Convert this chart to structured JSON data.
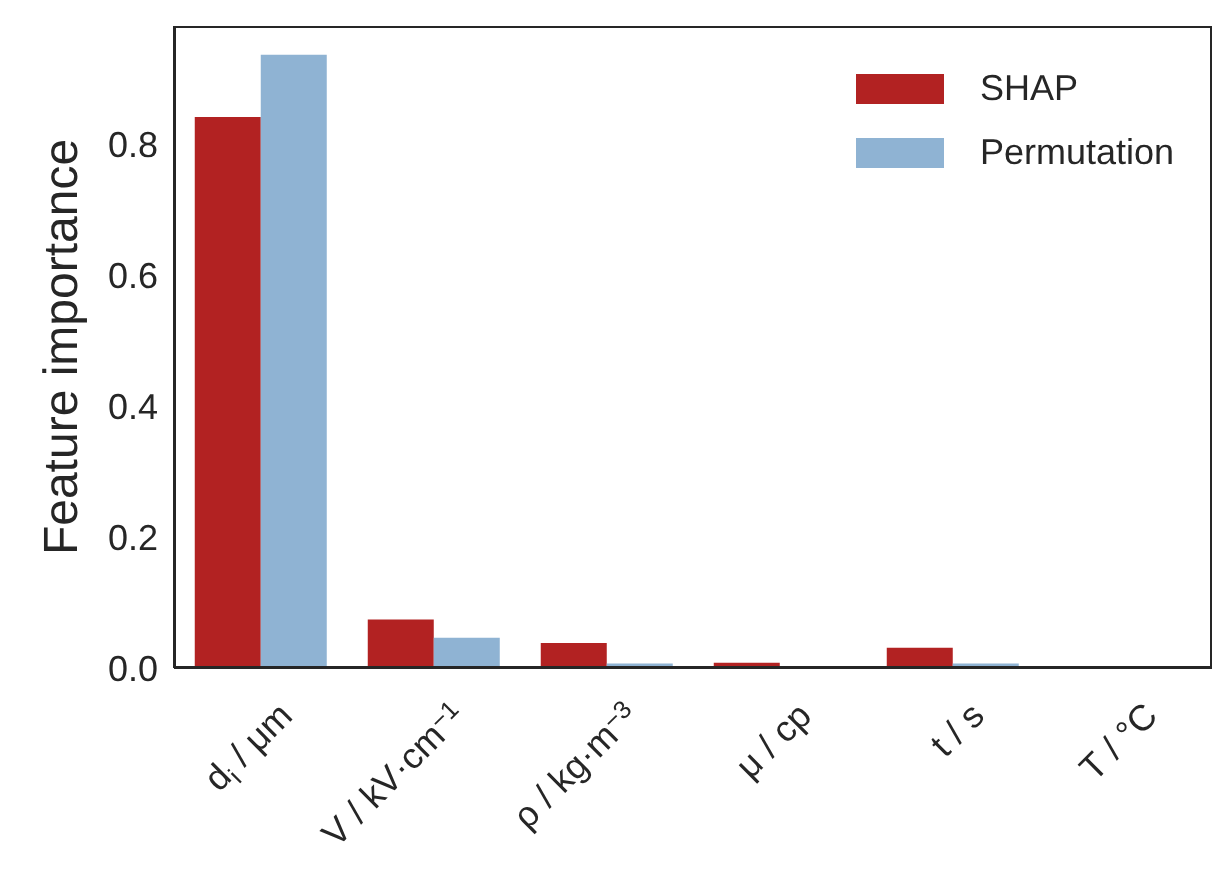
{
  "chart_data": {
    "type": "bar",
    "ylabel": "Feature importance",
    "categories": [
      "d$_{i}$ / μm",
      "V / kV·cm$^{−1}$",
      "ρ / kg·m$^{−3}$",
      "μ / cp",
      "t / s",
      "T / °C"
    ],
    "series": [
      {
        "name": "SHAP",
        "color": "#b22222",
        "values": [
          0.841,
          0.074,
          0.038,
          0.008,
          0.031,
          0
        ]
      },
      {
        "name": "Permutation",
        "color": "#8fb3d3",
        "values": [
          0.936,
          0.046,
          0.007,
          0,
          0.007,
          0
        ]
      }
    ],
    "ylim": [
      0,
      0.98
    ],
    "yticks": [
      {
        "value": 0,
        "label": "0.0"
      },
      0.2,
      0.4,
      0.6,
      0.8
    ],
    "legend": "top right"
  }
}
